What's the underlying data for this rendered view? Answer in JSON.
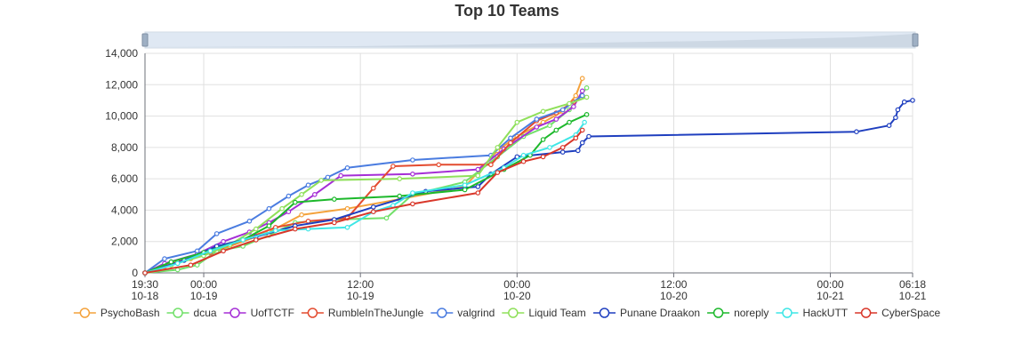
{
  "chart_data": {
    "type": "line",
    "title": "Top 10 Teams",
    "ylim": [
      0,
      14000
    ],
    "y_ticks": [
      0,
      2000,
      4000,
      6000,
      8000,
      10000,
      12000,
      14000
    ],
    "y_tick_labels": [
      "0",
      "2,000",
      "4,000",
      "6,000",
      "8,000",
      "10,000",
      "12,000",
      "14,000"
    ],
    "x_range": [
      "2019-10-18T19:30",
      "2019-10-21T06:18"
    ],
    "x_ticks": [
      {
        "t": "2019-10-18T19:30",
        "line1": "19:30",
        "line2": "10-18"
      },
      {
        "t": "2019-10-19T00:00",
        "line1": "00:00",
        "line2": "10-19"
      },
      {
        "t": "2019-10-19T12:00",
        "line1": "12:00",
        "line2": "10-19"
      },
      {
        "t": "2019-10-20T00:00",
        "line1": "00:00",
        "line2": "10-20"
      },
      {
        "t": "2019-10-20T12:00",
        "line1": "12:00",
        "line2": "10-20"
      },
      {
        "t": "2019-10-21T00:00",
        "line1": "00:00",
        "line2": "10-21"
      },
      {
        "t": "2019-10-21T06:18",
        "line1": "06:18",
        "line2": "10-21"
      }
    ],
    "grid": true,
    "legend_position": "bottom",
    "zoom_slider": true,
    "series": [
      {
        "name": "PsychoBash",
        "color": "#f4a23b",
        "points": [
          [
            "2019-10-18T19:30",
            0
          ],
          [
            "2019-10-18T21:00",
            400
          ],
          [
            "2019-10-18T23:00",
            900
          ],
          [
            "2019-10-19T02:00",
            1700
          ],
          [
            "2019-10-19T05:00",
            2600
          ],
          [
            "2019-10-19T07:30",
            3700
          ],
          [
            "2019-10-19T11:00",
            4100
          ],
          [
            "2019-10-19T15:00",
            4700
          ],
          [
            "2019-10-19T20:00",
            5500
          ],
          [
            "2019-10-19T22:30",
            7800
          ],
          [
            "2019-10-20T00:00",
            8700
          ],
          [
            "2019-10-20T02:00",
            9600
          ],
          [
            "2019-10-20T03:30",
            10300
          ],
          [
            "2019-10-20T04:30",
            11300
          ],
          [
            "2019-10-20T05:00",
            12400
          ]
        ]
      },
      {
        "name": "dcua",
        "color": "#72e06a",
        "points": [
          [
            "2019-10-18T19:30",
            0
          ],
          [
            "2019-10-18T22:00",
            200
          ],
          [
            "2019-10-18T23:30",
            500
          ],
          [
            "2019-10-19T01:00",
            1400
          ],
          [
            "2019-10-19T03:00",
            1700
          ],
          [
            "2019-10-19T05:00",
            2400
          ],
          [
            "2019-10-19T07:00",
            3200
          ],
          [
            "2019-10-19T10:00",
            3400
          ],
          [
            "2019-10-19T14:00",
            3500
          ],
          [
            "2019-10-19T16:00",
            5000
          ],
          [
            "2019-10-19T20:00",
            5800
          ],
          [
            "2019-10-19T22:30",
            7400
          ],
          [
            "2019-10-20T00:30",
            8700
          ],
          [
            "2019-10-20T02:30",
            9400
          ],
          [
            "2019-10-20T04:00",
            10400
          ],
          [
            "2019-10-20T05:20",
            11800
          ]
        ]
      },
      {
        "name": "UofTCTF",
        "color": "#a52fd6",
        "points": [
          [
            "2019-10-18T19:30",
            0
          ],
          [
            "2019-10-18T21:00",
            600
          ],
          [
            "2019-10-18T23:30",
            1200
          ],
          [
            "2019-10-19T01:30",
            2000
          ],
          [
            "2019-10-19T03:30",
            2600
          ],
          [
            "2019-10-19T05:00",
            3200
          ],
          [
            "2019-10-19T06:30",
            3900
          ],
          [
            "2019-10-19T08:30",
            5000
          ],
          [
            "2019-10-19T10:30",
            6200
          ],
          [
            "2019-10-19T16:00",
            6300
          ],
          [
            "2019-10-19T21:00",
            6600
          ],
          [
            "2019-10-19T23:00",
            7900
          ],
          [
            "2019-10-20T01:30",
            9300
          ],
          [
            "2019-10-20T03:00",
            9800
          ],
          [
            "2019-10-20T04:20",
            10600
          ],
          [
            "2019-10-20T05:00",
            11600
          ]
        ]
      },
      {
        "name": "RumbleInTheJungle",
        "color": "#e34b2f",
        "points": [
          [
            "2019-10-18T19:30",
            0
          ],
          [
            "2019-10-18T22:00",
            700
          ],
          [
            "2019-10-19T00:30",
            1300
          ],
          [
            "2019-10-19T03:00",
            2100
          ],
          [
            "2019-10-19T05:30",
            2900
          ],
          [
            "2019-10-19T08:00",
            3300
          ],
          [
            "2019-10-19T11:00",
            3500
          ],
          [
            "2019-10-19T13:00",
            5400
          ],
          [
            "2019-10-19T14:30",
            6800
          ],
          [
            "2019-10-19T18:00",
            6900
          ],
          [
            "2019-10-19T22:00",
            6900
          ],
          [
            "2019-10-19T23:30",
            8300
          ],
          [
            "2019-10-20T01:30",
            9700
          ],
          [
            "2019-10-20T03:00",
            10200
          ],
          [
            "2019-10-20T04:20",
            10900
          ],
          [
            "2019-10-20T05:00",
            11300
          ]
        ]
      },
      {
        "name": "valgrind",
        "color": "#4a7ce0",
        "points": [
          [
            "2019-10-18T19:30",
            0
          ],
          [
            "2019-10-18T21:00",
            900
          ],
          [
            "2019-10-18T23:30",
            1400
          ],
          [
            "2019-10-19T01:00",
            2500
          ],
          [
            "2019-10-19T03:30",
            3300
          ],
          [
            "2019-10-19T05:00",
            4100
          ],
          [
            "2019-10-19T06:30",
            4900
          ],
          [
            "2019-10-19T08:00",
            5600
          ],
          [
            "2019-10-19T09:30",
            6100
          ],
          [
            "2019-10-19T11:00",
            6700
          ],
          [
            "2019-10-19T16:00",
            7200
          ],
          [
            "2019-10-19T22:00",
            7500
          ],
          [
            "2019-10-19T23:30",
            8600
          ],
          [
            "2019-10-20T01:30",
            9800
          ],
          [
            "2019-10-20T03:30",
            10400
          ],
          [
            "2019-10-20T05:00",
            11300
          ]
        ]
      },
      {
        "name": "Liquid Team",
        "color": "#8fe05a",
        "points": [
          [
            "2019-10-18T19:30",
            0
          ],
          [
            "2019-10-18T21:30",
            500
          ],
          [
            "2019-10-19T00:00",
            1100
          ],
          [
            "2019-10-19T02:00",
            1800
          ],
          [
            "2019-10-19T04:00",
            2800
          ],
          [
            "2019-10-19T06:00",
            4100
          ],
          [
            "2019-10-19T07:30",
            5000
          ],
          [
            "2019-10-19T09:00",
            5900
          ],
          [
            "2019-10-19T15:00",
            6000
          ],
          [
            "2019-10-19T21:00",
            6200
          ],
          [
            "2019-10-19T22:30",
            8000
          ],
          [
            "2019-10-20T00:00",
            9600
          ],
          [
            "2019-10-20T02:00",
            10300
          ],
          [
            "2019-10-20T04:00",
            10800
          ],
          [
            "2019-10-20T05:20",
            11200
          ]
        ]
      },
      {
        "name": "Punane Draakon",
        "color": "#1f3fbf",
        "points": [
          [
            "2019-10-18T19:30",
            0
          ],
          [
            "2019-10-18T22:30",
            800
          ],
          [
            "2019-10-19T01:00",
            1700
          ],
          [
            "2019-10-19T04:00",
            2300
          ],
          [
            "2019-10-19T07:00",
            3000
          ],
          [
            "2019-10-19T10:00",
            3400
          ],
          [
            "2019-10-19T13:00",
            4200
          ],
          [
            "2019-10-19T17:00",
            5200
          ],
          [
            "2019-10-19T21:00",
            5500
          ],
          [
            "2019-10-19T22:00",
            6300
          ],
          [
            "2019-10-20T00:00",
            7400
          ],
          [
            "2019-10-20T03:30",
            7700
          ],
          [
            "2019-10-20T04:40",
            7800
          ],
          [
            "2019-10-20T05:00",
            8300
          ],
          [
            "2019-10-20T05:30",
            8700
          ],
          [
            "2019-10-21T02:00",
            9000
          ],
          [
            "2019-10-21T04:30",
            9400
          ],
          [
            "2019-10-21T05:00",
            9900
          ],
          [
            "2019-10-21T05:10",
            10400
          ],
          [
            "2019-10-21T05:40",
            10900
          ],
          [
            "2019-10-21T06:18",
            11000
          ]
        ]
      },
      {
        "name": "noreply",
        "color": "#1cb82b",
        "points": [
          [
            "2019-10-18T19:30",
            0
          ],
          [
            "2019-10-18T21:30",
            700
          ],
          [
            "2019-10-19T00:00",
            1300
          ],
          [
            "2019-10-19T03:00",
            2100
          ],
          [
            "2019-10-19T05:00",
            3000
          ],
          [
            "2019-10-19T07:00",
            4500
          ],
          [
            "2019-10-19T10:00",
            4700
          ],
          [
            "2019-10-19T15:00",
            4900
          ],
          [
            "2019-10-19T20:00",
            5300
          ],
          [
            "2019-10-19T23:00",
            6600
          ],
          [
            "2019-10-20T01:00",
            7500
          ],
          [
            "2019-10-20T02:00",
            8500
          ],
          [
            "2019-10-20T03:00",
            9100
          ],
          [
            "2019-10-20T04:00",
            9600
          ],
          [
            "2019-10-20T05:20",
            10100
          ]
        ]
      },
      {
        "name": "HackUTT",
        "color": "#3ee6e6",
        "points": [
          [
            "2019-10-18T19:30",
            0
          ],
          [
            "2019-10-18T22:00",
            600
          ],
          [
            "2019-10-19T00:30",
            1400
          ],
          [
            "2019-10-19T03:00",
            2100
          ],
          [
            "2019-10-19T05:30",
            2700
          ],
          [
            "2019-10-19T08:00",
            2800
          ],
          [
            "2019-10-19T11:00",
            2900
          ],
          [
            "2019-10-19T13:00",
            3900
          ],
          [
            "2019-10-19T14:30",
            4300
          ],
          [
            "2019-10-19T16:00",
            5100
          ],
          [
            "2019-10-19T20:00",
            5600
          ],
          [
            "2019-10-19T23:00",
            6700
          ],
          [
            "2019-10-20T00:30",
            7500
          ],
          [
            "2019-10-20T02:30",
            8000
          ],
          [
            "2019-10-20T04:30",
            8800
          ],
          [
            "2019-10-20T05:10",
            9600
          ]
        ]
      },
      {
        "name": "CyberSpace",
        "color": "#d9372a",
        "points": [
          [
            "2019-10-18T19:30",
            0
          ],
          [
            "2019-10-18T23:00",
            500
          ],
          [
            "2019-10-19T01:30",
            1400
          ],
          [
            "2019-10-19T04:00",
            2100
          ],
          [
            "2019-10-19T07:00",
            2800
          ],
          [
            "2019-10-19T10:00",
            3200
          ],
          [
            "2019-10-19T13:00",
            3900
          ],
          [
            "2019-10-19T16:00",
            4400
          ],
          [
            "2019-10-19T21:00",
            5100
          ],
          [
            "2019-10-19T22:30",
            6400
          ],
          [
            "2019-10-20T00:30",
            7100
          ],
          [
            "2019-10-20T02:00",
            7400
          ],
          [
            "2019-10-20T03:30",
            8000
          ],
          [
            "2019-10-20T04:30",
            8600
          ],
          [
            "2019-10-20T05:00",
            9100
          ]
        ]
      }
    ]
  }
}
